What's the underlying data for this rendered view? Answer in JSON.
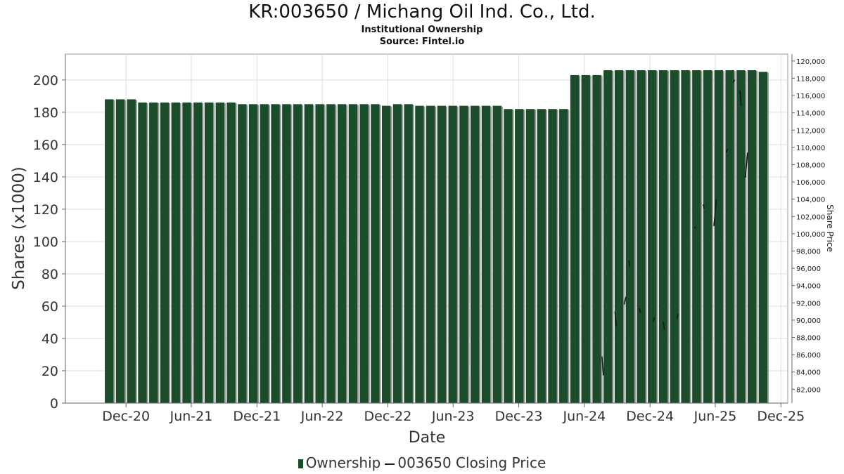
{
  "header": {
    "title": "KR:003650 / Michang Oil Ind. Co., Ltd.",
    "subtitle": "Institutional Ownership",
    "source": "Source: Fintel.io"
  },
  "legend": {
    "ownership_label": "Ownership",
    "price_label": "003650 Closing Price"
  },
  "colors": {
    "bar": "#1b4d2a",
    "bar_shadow": "#9a9a9a",
    "price_line": "#111111",
    "grid": "#dddddd"
  },
  "chart_data": {
    "type": "bar",
    "title": "KR:003650 / Michang Oil Ind. Co., Ltd.",
    "xlabel": "Date",
    "ylabel": "Shares (x1000)",
    "y2label": "Share Price",
    "ylim": [
      0,
      216
    ],
    "y2lim": [
      80400,
      120800
    ],
    "x_range": [
      "2020-06-15",
      "2025-12-20"
    ],
    "grid": true,
    "legend_position": "bottom",
    "x_ticks": [
      "Dec-20",
      "Jun-21",
      "Dec-21",
      "Jun-22",
      "Dec-22",
      "Jun-23",
      "Dec-23",
      "Jun-24",
      "Dec-24",
      "Jun-25",
      "Dec-25"
    ],
    "x_tick_dates": [
      "2020-12-01",
      "2021-06-01",
      "2021-12-01",
      "2022-06-01",
      "2022-12-01",
      "2023-06-01",
      "2023-12-01",
      "2024-06-01",
      "2024-12-01",
      "2025-06-01",
      "2025-12-01"
    ],
    "y_ticks": [
      0,
      20,
      40,
      60,
      80,
      100,
      120,
      140,
      160,
      180,
      200
    ],
    "y2_ticks": [
      82000,
      84000,
      86000,
      88000,
      90000,
      92000,
      94000,
      96000,
      98000,
      100000,
      102000,
      104000,
      106000,
      108000,
      110000,
      112000,
      114000,
      116000,
      118000,
      120000
    ],
    "y2_tick_labels": [
      "82,000",
      "84,000",
      "86,000",
      "88,000",
      "90,000",
      "92,000",
      "94,000",
      "96,000",
      "98,000",
      "100,000",
      "102,000",
      "104,000",
      "106,000",
      "108,000",
      "110,000",
      "112,000",
      "114,000",
      "116,000",
      "118,000",
      "120,000"
    ],
    "series": [
      {
        "name": "Ownership",
        "type": "bar",
        "start_date": "2020-10-15",
        "interval_days": 30.9,
        "values": [
          188,
          188,
          188,
          186,
          186,
          186,
          186,
          186,
          186,
          186,
          186,
          186,
          185,
          185,
          185,
          185,
          185,
          185,
          185,
          185,
          185,
          185,
          185,
          185,
          185,
          184,
          185,
          185,
          184,
          184,
          184,
          184,
          184,
          184,
          184,
          184,
          182,
          182,
          182,
          182,
          182,
          182,
          203,
          203,
          203,
          206,
          206,
          206,
          206,
          206,
          206,
          206,
          206,
          206,
          206,
          206,
          206,
          206,
          206,
          205
        ]
      },
      {
        "name": "003650 Closing Price",
        "type": "line",
        "segments": [
          [
            [
              "2024-07-20",
              85800
            ],
            [
              "2024-07-24",
              83600
            ]
          ],
          [
            [
              "2024-08-25",
              91000
            ],
            [
              "2024-08-29",
              89300
            ]
          ],
          [
            [
              "2024-09-20",
              91800
            ],
            [
              "2024-09-25",
              92700
            ]
          ],
          [
            [
              "2024-10-03",
              96900
            ],
            [
              "2024-10-06",
              96200
            ]
          ],
          [
            [
              "2024-11-01",
              91400
            ],
            [
              "2024-11-05",
              90800
            ]
          ],
          [
            [
              "2024-12-10",
              89800
            ],
            [
              "2024-12-13",
              90300
            ]
          ],
          [
            [
              "2025-01-07",
              89800
            ],
            [
              "2025-01-10",
              88900
            ]
          ],
          [
            [
              "2025-02-14",
              90200
            ],
            [
              "2025-02-18",
              90700
            ]
          ],
          [
            [
              "2025-04-04",
              100600
            ],
            [
              "2025-04-07",
              100800
            ]
          ],
          [
            [
              "2025-04-28",
              103400
            ],
            [
              "2025-05-01",
              102900
            ]
          ],
          [
            [
              "2025-05-28",
              100900
            ],
            [
              "2025-06-04",
              104000
            ]
          ],
          [
            [
              "2025-07-01",
              109400
            ],
            [
              "2025-07-05",
              109800
            ]
          ],
          [
            [
              "2025-07-20",
              117500
            ],
            [
              "2025-07-25",
              117800
            ]
          ],
          [
            [
              "2025-08-09",
              116600
            ],
            [
              "2025-08-12",
              114800
            ]
          ],
          [
            [
              "2025-08-24",
              106500
            ],
            [
              "2025-08-30",
              109400
            ]
          ]
        ]
      }
    ]
  }
}
